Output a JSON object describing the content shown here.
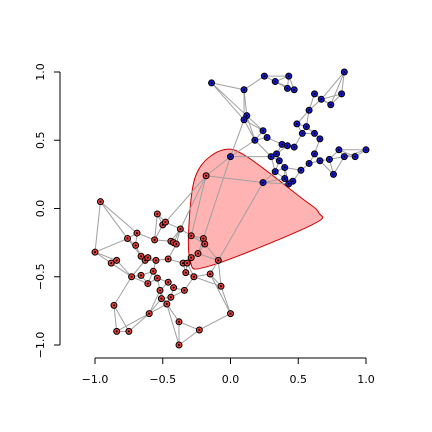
{
  "chart_data": {
    "type": "scatter",
    "title": "",
    "xlabel": "",
    "ylabel": "",
    "xlim": [
      -1.0,
      1.0
    ],
    "ylim": [
      -1.0,
      1.0
    ],
    "grid": false,
    "x_ticks": [
      {
        "value": -1.0,
        "label": "−1.0"
      },
      {
        "value": -0.5,
        "label": "−0.5"
      },
      {
        "value": 0.0,
        "label": "0.0"
      },
      {
        "value": 0.5,
        "label": "0.5"
      },
      {
        "value": 1.0,
        "label": "1.0"
      }
    ],
    "y_ticks": [
      {
        "value": -1.0,
        "label": "−1.0"
      },
      {
        "value": -0.5,
        "label": "−0.5"
      },
      {
        "value": 0.0,
        "label": "0.0"
      },
      {
        "value": 0.5,
        "label": "0.5"
      },
      {
        "value": 1.0,
        "label": "1.0"
      }
    ],
    "colors": {
      "red_node": "#e8413c",
      "blue_node": "#1a1ad6",
      "hull_fill": "#ffb3b3",
      "hull_stroke": "#cc0000",
      "edge": "#a0a0a0"
    },
    "series": [
      {
        "color": "red",
        "points": [
          [
            -0.96,
            0.05
          ],
          [
            -1.0,
            -0.32
          ],
          [
            -0.88,
            -0.4
          ],
          [
            -0.84,
            -0.38
          ],
          [
            -0.76,
            -0.22
          ],
          [
            -0.73,
            -0.5
          ],
          [
            -0.69,
            -0.18
          ],
          [
            -0.7,
            -0.27
          ],
          [
            -0.66,
            -0.35
          ],
          [
            -0.63,
            -0.38
          ],
          [
            -0.61,
            -0.36
          ],
          [
            -0.57,
            -0.46
          ],
          [
            -0.56,
            -0.23
          ],
          [
            -0.54,
            -0.04
          ],
          [
            -0.5,
            -0.12
          ],
          [
            -0.48,
            -0.1
          ],
          [
            -0.46,
            -0.37
          ],
          [
            -0.44,
            -0.24
          ],
          [
            -0.42,
            -0.25
          ],
          [
            -0.4,
            -0.26
          ],
          [
            -0.37,
            -0.15
          ],
          [
            -0.35,
            -0.4
          ],
          [
            -0.32,
            -0.4
          ],
          [
            -0.33,
            -0.47
          ],
          [
            -0.29,
            -0.36
          ],
          [
            -0.29,
            -0.2
          ],
          [
            -0.24,
            -0.33
          ],
          [
            -0.2,
            -0.22
          ],
          [
            -0.19,
            -0.26
          ],
          [
            -0.18,
            0.24
          ],
          [
            -0.15,
            -0.48
          ],
          [
            -0.09,
            -0.38
          ],
          [
            -0.07,
            -0.57
          ],
          [
            0.0,
            -0.77
          ],
          [
            -0.23,
            -0.89
          ],
          [
            -0.38,
            -0.83
          ],
          [
            -0.38,
            -1.0
          ],
          [
            -0.44,
            -0.65
          ],
          [
            -0.52,
            -0.6
          ],
          [
            -0.51,
            -0.66
          ],
          [
            -0.61,
            -0.55
          ],
          [
            -0.6,
            -0.77
          ],
          [
            -0.75,
            -0.9
          ],
          [
            -0.84,
            -0.9
          ],
          [
            -0.86,
            -0.71
          ],
          [
            -0.66,
            -0.49
          ],
          [
            -0.54,
            -0.51
          ],
          [
            -0.55,
            -0.38
          ],
          [
            -0.46,
            -0.54
          ],
          [
            -0.47,
            -0.7
          ],
          [
            -0.42,
            -0.58
          ],
          [
            -0.34,
            -0.6
          ],
          [
            -0.27,
            -0.5
          ]
        ]
      },
      {
        "color": "blue",
        "points": [
          [
            -0.14,
            0.92
          ],
          [
            0.1,
            0.87
          ],
          [
            0.25,
            0.97
          ],
          [
            0.33,
            0.93
          ],
          [
            0.43,
            0.97
          ],
          [
            0.42,
            0.88
          ],
          [
            0.47,
            0.87
          ],
          [
            0.62,
            0.84
          ],
          [
            0.84,
            1.0
          ],
          [
            0.82,
            0.84
          ],
          [
            0.67,
            0.8
          ],
          [
            0.74,
            0.76
          ],
          [
            0.58,
            0.72
          ],
          [
            0.49,
            0.62
          ],
          [
            0.56,
            0.6
          ],
          [
            0.62,
            0.55
          ],
          [
            0.66,
            0.51
          ],
          [
            0.53,
            0.55
          ],
          [
            0.12,
            0.68
          ],
          [
            0.1,
            0.65
          ],
          [
            0.24,
            0.57
          ],
          [
            0.27,
            0.52
          ],
          [
            0.38,
            0.47
          ],
          [
            0.42,
            0.46
          ],
          [
            0.47,
            0.45
          ],
          [
            0.34,
            0.4
          ],
          [
            0.3,
            0.38
          ],
          [
            0.36,
            0.35
          ],
          [
            0.33,
            0.27
          ],
          [
            0.4,
            0.22
          ],
          [
            0.4,
            0.3
          ],
          [
            0.46,
            0.2
          ],
          [
            0.43,
            0.18
          ],
          [
            0.52,
            0.28
          ],
          [
            0.58,
            0.33
          ],
          [
            0.62,
            0.4
          ],
          [
            0.66,
            0.35
          ],
          [
            0.73,
            0.36
          ],
          [
            0.76,
            0.25
          ],
          [
            0.8,
            0.43
          ],
          [
            0.84,
            0.38
          ],
          [
            0.92,
            0.38
          ],
          [
            1.0,
            0.43
          ],
          [
            0.0,
            0.38
          ],
          [
            0.18,
            0.5
          ],
          [
            0.24,
            0.19
          ]
        ]
      }
    ],
    "hull": {
      "color": "red",
      "vertices": [
        [
          -0.29,
          0.08
        ],
        [
          -0.22,
          0.31
        ],
        [
          -0.05,
          0.43
        ],
        [
          0.12,
          0.38
        ],
        [
          0.52,
          0.08
        ],
        [
          0.65,
          -0.03
        ],
        [
          0.6,
          -0.12
        ],
        [
          -0.15,
          -0.42
        ],
        [
          -0.3,
          -0.37
        ]
      ]
    }
  }
}
